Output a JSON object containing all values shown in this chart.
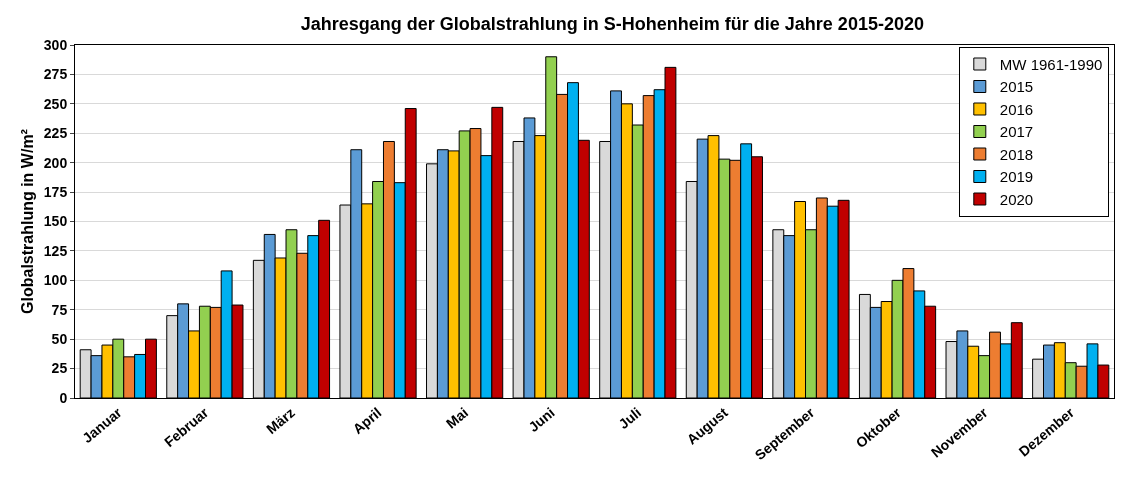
{
  "chart_data": {
    "type": "bar",
    "title": "Jahresgang der Globalstrahlung in S-Hohenheim für die Jahre 2015-2020",
    "ylabel": "Globalstrahlung in W/m²",
    "categories": [
      "Januar",
      "Februar",
      "März",
      "April",
      "Mai",
      "Juni",
      "Juli",
      "August",
      "September",
      "Oktober",
      "November",
      "Dezember"
    ],
    "series": [
      {
        "name": "MW 1961-1990",
        "color": "#d9d9d9",
        "values": [
          41,
          70,
          117,
          164,
          199,
          218,
          218,
          184,
          143,
          88,
          48,
          33
        ]
      },
      {
        "name": "2015",
        "color": "#5b9bd5",
        "values": [
          36,
          80,
          139,
          211,
          211,
          238,
          261,
          220,
          138,
          77,
          57,
          45
        ]
      },
      {
        "name": "2016",
        "color": "#ffc000",
        "values": [
          45,
          57,
          119,
          165,
          210,
          223,
          250,
          223,
          167,
          82,
          44,
          47
        ]
      },
      {
        "name": "2017",
        "color": "#92d050",
        "values": [
          50,
          78,
          143,
          184,
          227,
          290,
          232,
          203,
          143,
          100,
          36,
          30
        ]
      },
      {
        "name": "2018",
        "color": "#ed7d31",
        "values": [
          35,
          77,
          123,
          218,
          229,
          258,
          257,
          202,
          170,
          110,
          56,
          27
        ]
      },
      {
        "name": "2019",
        "color": "#00b0f0",
        "values": [
          37,
          108,
          138,
          183,
          206,
          268,
          262,
          216,
          163,
          91,
          46,
          46
        ]
      },
      {
        "name": "2020",
        "color": "#c00000",
        "values": [
          50,
          79,
          151,
          246,
          247,
          219,
          281,
          205,
          168,
          78,
          64,
          28
        ]
      }
    ],
    "ylim": [
      0,
      300
    ],
    "yticks": [
      0,
      25,
      50,
      75,
      100,
      125,
      150,
      175,
      200,
      225,
      250,
      275,
      300
    ],
    "grid": "y",
    "legend": "top right"
  }
}
